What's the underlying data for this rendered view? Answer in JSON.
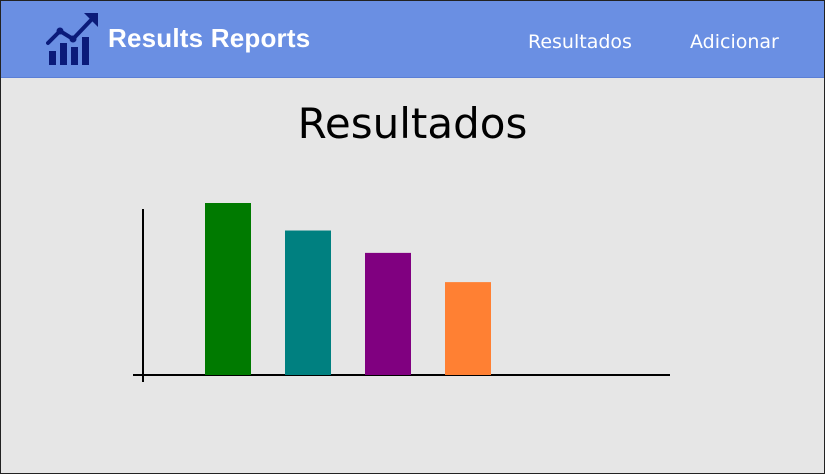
{
  "app": {
    "brand_title": "Results Reports",
    "brand_icon": "growth-chart-icon",
    "brand_icon_color": "#0b1b7a"
  },
  "nav": {
    "links": [
      {
        "label": "Resultados"
      },
      {
        "label": "Adicionar"
      }
    ]
  },
  "main": {
    "title": "Resultados"
  },
  "colors": {
    "navbar": "#6a8fe3",
    "background": "#e6e6e6",
    "axis": "#000000"
  },
  "chart_data": {
    "type": "bar",
    "title": "",
    "xlabel": "",
    "ylabel": "",
    "categories": [
      "",
      "",
      "",
      ""
    ],
    "values": [
      100,
      84,
      71,
      54
    ],
    "colors": [
      "#007a00",
      "#008080",
      "#800080",
      "#ff8033"
    ],
    "ylim": [
      0,
      100
    ],
    "grid": false,
    "legend": "none"
  }
}
